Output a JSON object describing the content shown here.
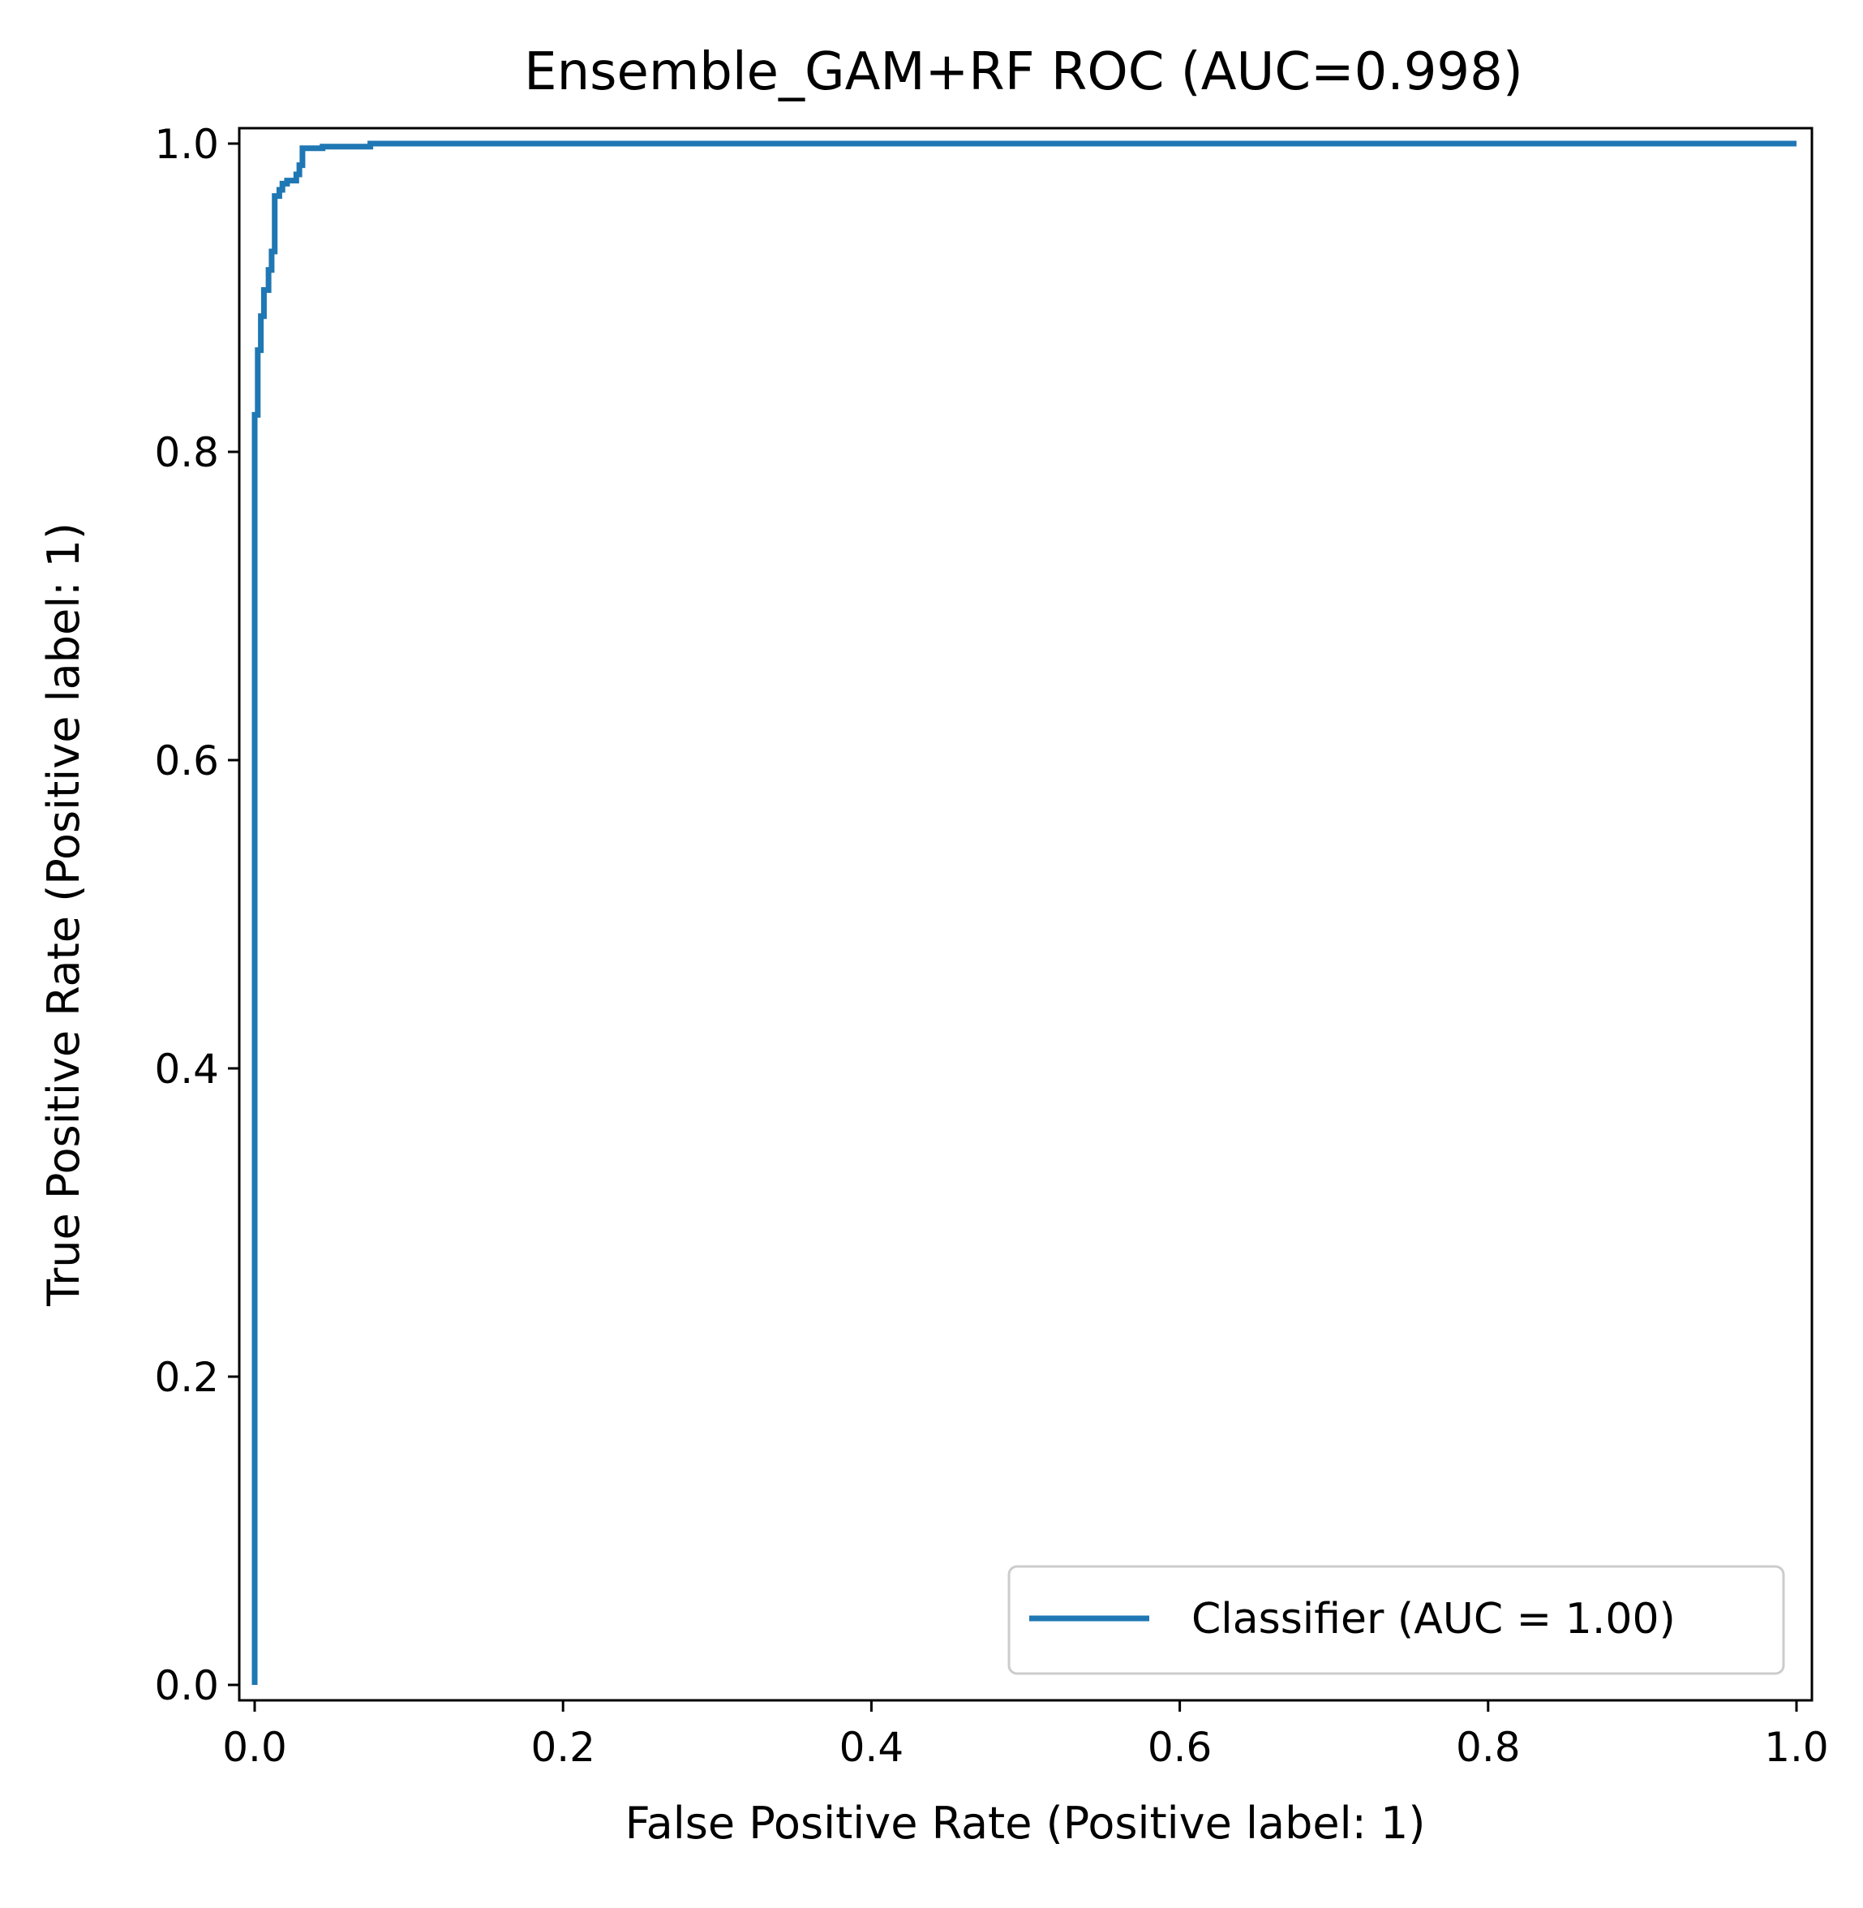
{
  "chart_data": {
    "type": "line",
    "title": "Ensemble_GAM+RF ROC (AUC=0.998)",
    "xlabel": "False Positive Rate (Positive label: 1)",
    "ylabel": "True Positive Rate (Positive label: 1)",
    "xlim": [
      -0.01,
      1.01
    ],
    "ylim": [
      -0.01,
      1.01
    ],
    "xticks": [
      "0.0",
      "0.2",
      "0.4",
      "0.6",
      "0.8",
      "1.0"
    ],
    "yticks": [
      "0.0",
      "0.2",
      "0.4",
      "0.6",
      "0.8",
      "1.0"
    ],
    "grid": false,
    "legend_position": "lower-right",
    "series": [
      {
        "name": "Classifier (AUC = 1.00)",
        "color": "#1f77b4",
        "x": [
          0.0,
          0.0,
          0.002,
          0.002,
          0.004,
          0.004,
          0.006,
          0.006,
          0.009,
          0.009,
          0.011,
          0.011,
          0.013,
          0.013,
          0.016,
          0.016,
          0.018,
          0.018,
          0.021,
          0.021,
          0.027,
          0.027,
          0.029,
          0.029,
          0.031,
          0.031,
          0.044,
          0.044,
          0.075,
          0.075,
          1.0
        ],
        "y": [
          0.0,
          0.824,
          0.824,
          0.866,
          0.866,
          0.888,
          0.888,
          0.905,
          0.905,
          0.918,
          0.918,
          0.93,
          0.93,
          0.966,
          0.966,
          0.97,
          0.97,
          0.974,
          0.974,
          0.976,
          0.976,
          0.98,
          0.98,
          0.986,
          0.986,
          0.997,
          0.997,
          0.998,
          0.998,
          1.0,
          1.0
        ]
      }
    ]
  }
}
